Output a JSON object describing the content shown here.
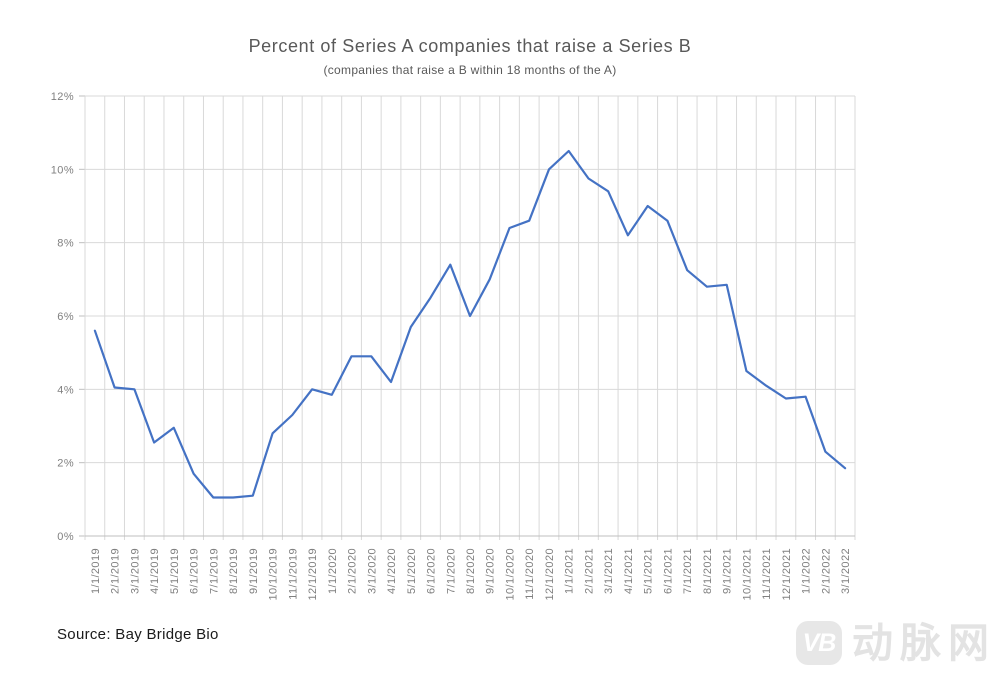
{
  "chart_data": {
    "type": "line",
    "title": "Percent of Series A companies that raise a Series B",
    "subtitle": "(companies that raise a B within 18 months of the A)",
    "categories": [
      "1/1/2019",
      "2/1/2019",
      "3/1/2019",
      "4/1/2019",
      "5/1/2019",
      "6/1/2019",
      "7/1/2019",
      "8/1/2019",
      "9/1/2019",
      "10/1/2019",
      "11/1/2019",
      "12/1/2019",
      "1/1/2020",
      "2/1/2020",
      "3/1/2020",
      "4/1/2020",
      "5/1/2020",
      "6/1/2020",
      "7/1/2020",
      "8/1/2020",
      "9/1/2020",
      "10/1/2020",
      "11/1/2020",
      "12/1/2020",
      "1/1/2021",
      "2/1/2021",
      "3/1/2021",
      "4/1/2021",
      "5/1/2021",
      "6/1/2021",
      "7/1/2021",
      "8/1/2021",
      "9/1/2021",
      "10/1/2021",
      "11/1/2021",
      "12/1/2021",
      "1/1/2022",
      "2/1/2022",
      "3/1/2022"
    ],
    "values": [
      5.6,
      4.05,
      4.0,
      2.55,
      2.95,
      1.7,
      1.05,
      1.05,
      1.1,
      2.8,
      3.3,
      4.0,
      3.85,
      4.9,
      4.9,
      4.2,
      5.7,
      6.5,
      7.4,
      6.0,
      7.0,
      8.4,
      8.6,
      10.0,
      10.5,
      9.75,
      9.4,
      8.2,
      9.0,
      8.6,
      7.25,
      6.8,
      6.85,
      4.5,
      4.1,
      3.75,
      3.8,
      2.3,
      1.85
    ],
    "ylim": [
      0,
      12
    ],
    "ytick_labels": [
      "0%",
      "2%",
      "4%",
      "6%",
      "8%",
      "10%",
      "12%"
    ],
    "grid": "both",
    "legend": "none",
    "line_color": "#4472C4",
    "gridline_color": "#D9D9D9",
    "axis_color": "#BFBFBF",
    "axis_label_color": "#7F7F7F",
    "title_color": "#595959"
  },
  "footer": {
    "source": "Source: Bay Bridge Bio"
  },
  "watermark": {
    "badge": "VB",
    "text": "动脉网"
  }
}
